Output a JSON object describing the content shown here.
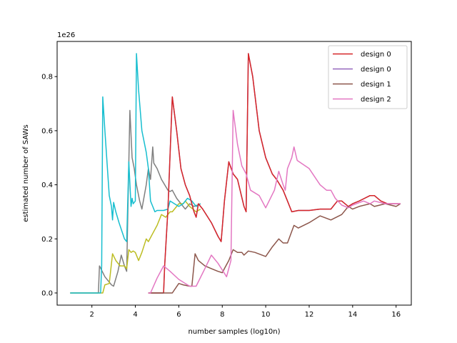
{
  "chart_data": {
    "type": "line",
    "title": "",
    "xlabel": "number samples (log10n)",
    "ylabel": "estimated number of SAWs",
    "y_offset_text": "1e26",
    "xlim": [
      0.4,
      16.7
    ],
    "ylim": [
      -0.045,
      0.93
    ],
    "x_ticks": [
      2,
      4,
      6,
      8,
      10,
      12,
      14,
      16
    ],
    "x_tick_labels": [
      "2",
      "4",
      "6",
      "8",
      "10",
      "12",
      "14",
      "16"
    ],
    "y_ticks": [
      0.0,
      0.2,
      0.4,
      0.6,
      0.8
    ],
    "y_tick_labels": [
      "0.0",
      "0.2",
      "0.4",
      "0.6",
      "0.8"
    ],
    "grid": false,
    "legend_position": "top-right",
    "legend": [
      {
        "label": "design 0",
        "color": "#d62728"
      },
      {
        "label": "design 0",
        "color": "#9467bd"
      },
      {
        "label": "design 1",
        "color": "#8c564b"
      },
      {
        "label": "design 2",
        "color": "#e377c2"
      }
    ],
    "series": [
      {
        "color": "#7f7f7f",
        "points": [
          [
            1.0,
            0.0
          ],
          [
            2.3,
            0.0
          ],
          [
            2.35,
            0.1
          ],
          [
            2.6,
            0.06
          ],
          [
            2.9,
            0.03
          ],
          [
            3.0,
            0.025
          ],
          [
            3.2,
            0.08
          ],
          [
            3.35,
            0.14
          ],
          [
            3.5,
            0.1
          ],
          [
            3.6,
            0.08
          ],
          [
            3.7,
            0.48
          ],
          [
            3.75,
            0.675
          ],
          [
            3.85,
            0.5
          ],
          [
            3.95,
            0.46
          ],
          [
            4.05,
            0.4
          ],
          [
            4.2,
            0.34
          ],
          [
            4.3,
            0.31
          ],
          [
            4.5,
            0.4
          ],
          [
            4.6,
            0.46
          ],
          [
            4.7,
            0.42
          ],
          [
            4.8,
            0.54
          ],
          [
            4.85,
            0.48
          ],
          [
            5.0,
            0.46
          ],
          [
            5.2,
            0.42
          ],
          [
            5.5,
            0.38
          ],
          [
            5.6,
            0.375
          ],
          [
            5.7,
            0.38
          ],
          [
            5.9,
            0.35
          ],
          [
            6.1,
            0.33
          ],
          [
            6.3,
            0.31
          ],
          [
            6.5,
            0.33
          ],
          [
            6.7,
            0.32
          ],
          [
            7.0,
            0.33
          ]
        ]
      },
      {
        "color": "#bcbd22",
        "points": [
          [
            1.0,
            0.0
          ],
          [
            2.5,
            0.0
          ],
          [
            2.6,
            0.03
          ],
          [
            2.8,
            0.035
          ],
          [
            2.95,
            0.145
          ],
          [
            3.1,
            0.12
          ],
          [
            3.3,
            0.1
          ],
          [
            3.5,
            0.1
          ],
          [
            3.6,
            0.09
          ],
          [
            3.7,
            0.16
          ],
          [
            3.8,
            0.15
          ],
          [
            3.9,
            0.155
          ],
          [
            4.0,
            0.15
          ],
          [
            4.15,
            0.12
          ],
          [
            4.3,
            0.15
          ],
          [
            4.5,
            0.2
          ],
          [
            4.6,
            0.19
          ],
          [
            4.8,
            0.22
          ],
          [
            5.0,
            0.25
          ],
          [
            5.2,
            0.29
          ],
          [
            5.4,
            0.28
          ],
          [
            5.6,
            0.3
          ],
          [
            5.7,
            0.3
          ],
          [
            5.9,
            0.32
          ],
          [
            6.0,
            0.33
          ],
          [
            6.2,
            0.33
          ],
          [
            6.3,
            0.34
          ],
          [
            6.5,
            0.32
          ],
          [
            6.8,
            0.3
          ],
          [
            7.0,
            0.31
          ]
        ]
      },
      {
        "color": "#17becf",
        "points": [
          [
            1.0,
            0.0
          ],
          [
            2.4,
            0.0
          ],
          [
            2.45,
            0.1
          ],
          [
            2.5,
            0.725
          ],
          [
            2.6,
            0.6
          ],
          [
            2.8,
            0.36
          ],
          [
            2.9,
            0.32
          ],
          [
            2.95,
            0.27
          ],
          [
            3.0,
            0.335
          ],
          [
            3.1,
            0.3
          ],
          [
            3.25,
            0.26
          ],
          [
            3.5,
            0.2
          ],
          [
            3.6,
            0.19
          ],
          [
            3.7,
            0.485
          ],
          [
            3.8,
            0.32
          ],
          [
            3.85,
            0.35
          ],
          [
            3.9,
            0.33
          ],
          [
            4.0,
            0.34
          ],
          [
            4.05,
            0.885
          ],
          [
            4.15,
            0.75
          ],
          [
            4.3,
            0.6
          ],
          [
            4.5,
            0.52
          ],
          [
            4.6,
            0.46
          ],
          [
            4.7,
            0.34
          ],
          [
            4.8,
            0.32
          ],
          [
            4.9,
            0.3
          ],
          [
            5.0,
            0.305
          ],
          [
            5.3,
            0.305
          ],
          [
            5.5,
            0.31
          ],
          [
            5.6,
            0.34
          ],
          [
            5.8,
            0.33
          ],
          [
            6.0,
            0.32
          ],
          [
            6.2,
            0.33
          ],
          [
            6.4,
            0.35
          ],
          [
            6.6,
            0.34
          ],
          [
            6.8,
            0.32
          ],
          [
            7.0,
            0.33
          ]
        ]
      },
      {
        "color": "#9467bd",
        "points": [
          [
            4.6,
            0.0
          ],
          [
            5.3,
            0.0
          ],
          [
            5.35,
            0.1
          ],
          [
            5.5,
            0.31
          ],
          [
            5.7,
            0.725
          ],
          [
            5.9,
            0.6
          ],
          [
            6.1,
            0.46
          ],
          [
            6.3,
            0.4
          ],
          [
            6.5,
            0.36
          ],
          [
            6.7,
            0.3
          ],
          [
            6.8,
            0.28
          ],
          [
            6.9,
            0.33
          ],
          [
            7.1,
            0.31
          ],
          [
            7.5,
            0.26
          ],
          [
            7.8,
            0.21
          ],
          [
            7.95,
            0.19
          ],
          [
            8.1,
            0.34
          ],
          [
            8.3,
            0.485
          ],
          [
            8.5,
            0.44
          ],
          [
            8.7,
            0.42
          ],
          [
            9.0,
            0.32
          ],
          [
            9.1,
            0.3
          ],
          [
            9.2,
            0.885
          ],
          [
            9.4,
            0.8
          ],
          [
            9.7,
            0.6
          ],
          [
            10.0,
            0.5
          ],
          [
            10.3,
            0.44
          ],
          [
            10.5,
            0.42
          ],
          [
            10.8,
            0.38
          ],
          [
            11.0,
            0.34
          ],
          [
            11.2,
            0.3
          ],
          [
            11.5,
            0.305
          ],
          [
            12.0,
            0.305
          ],
          [
            12.5,
            0.31
          ],
          [
            13.0,
            0.31
          ],
          [
            13.3,
            0.34
          ],
          [
            13.5,
            0.34
          ],
          [
            13.8,
            0.32
          ],
          [
            14.0,
            0.33
          ],
          [
            14.3,
            0.34
          ],
          [
            14.8,
            0.36
          ],
          [
            15.0,
            0.36
          ],
          [
            15.3,
            0.34
          ],
          [
            15.6,
            0.33
          ],
          [
            16.0,
            0.33
          ],
          [
            16.2,
            0.33
          ]
        ]
      },
      {
        "color": "#d62728",
        "points": [
          [
            4.6,
            0.0
          ],
          [
            5.3,
            0.0
          ],
          [
            5.35,
            0.1
          ],
          [
            5.5,
            0.31
          ],
          [
            5.7,
            0.725
          ],
          [
            5.9,
            0.6
          ],
          [
            6.1,
            0.46
          ],
          [
            6.3,
            0.4
          ],
          [
            6.5,
            0.36
          ],
          [
            6.7,
            0.3
          ],
          [
            6.8,
            0.28
          ],
          [
            6.9,
            0.33
          ],
          [
            7.1,
            0.31
          ],
          [
            7.5,
            0.26
          ],
          [
            7.8,
            0.21
          ],
          [
            7.95,
            0.19
          ],
          [
            8.1,
            0.34
          ],
          [
            8.3,
            0.485
          ],
          [
            8.5,
            0.44
          ],
          [
            8.7,
            0.42
          ],
          [
            9.0,
            0.32
          ],
          [
            9.1,
            0.3
          ],
          [
            9.2,
            0.885
          ],
          [
            9.4,
            0.8
          ],
          [
            9.7,
            0.6
          ],
          [
            10.0,
            0.5
          ],
          [
            10.3,
            0.44
          ],
          [
            10.5,
            0.42
          ],
          [
            10.8,
            0.38
          ],
          [
            11.0,
            0.34
          ],
          [
            11.2,
            0.3
          ],
          [
            11.5,
            0.305
          ],
          [
            12.0,
            0.305
          ],
          [
            12.5,
            0.31
          ],
          [
            13.0,
            0.31
          ],
          [
            13.3,
            0.34
          ],
          [
            13.5,
            0.34
          ],
          [
            13.8,
            0.32
          ],
          [
            14.0,
            0.33
          ],
          [
            14.3,
            0.34
          ],
          [
            14.8,
            0.36
          ],
          [
            15.0,
            0.36
          ],
          [
            15.3,
            0.34
          ],
          [
            15.6,
            0.33
          ],
          [
            16.0,
            0.33
          ],
          [
            16.2,
            0.33
          ]
        ]
      },
      {
        "color": "#8c564b",
        "points": [
          [
            4.6,
            0.0
          ],
          [
            5.7,
            0.0
          ],
          [
            6.0,
            0.035
          ],
          [
            6.2,
            0.03
          ],
          [
            6.5,
            0.025
          ],
          [
            6.6,
            0.025
          ],
          [
            6.75,
            0.145
          ],
          [
            6.9,
            0.12
          ],
          [
            7.2,
            0.1
          ],
          [
            7.5,
            0.09
          ],
          [
            7.8,
            0.08
          ],
          [
            8.0,
            0.075
          ],
          [
            8.1,
            0.09
          ],
          [
            8.3,
            0.12
          ],
          [
            8.5,
            0.16
          ],
          [
            8.7,
            0.15
          ],
          [
            8.9,
            0.15
          ],
          [
            9.0,
            0.14
          ],
          [
            9.2,
            0.155
          ],
          [
            9.5,
            0.15
          ],
          [
            10.0,
            0.135
          ],
          [
            10.3,
            0.17
          ],
          [
            10.6,
            0.2
          ],
          [
            10.8,
            0.185
          ],
          [
            11.0,
            0.185
          ],
          [
            11.3,
            0.25
          ],
          [
            11.5,
            0.24
          ],
          [
            12.0,
            0.26
          ],
          [
            12.5,
            0.285
          ],
          [
            13.0,
            0.27
          ],
          [
            13.5,
            0.29
          ],
          [
            13.8,
            0.32
          ],
          [
            14.0,
            0.31
          ],
          [
            14.3,
            0.32
          ],
          [
            14.8,
            0.33
          ],
          [
            15.0,
            0.32
          ],
          [
            15.5,
            0.33
          ],
          [
            16.0,
            0.32
          ],
          [
            16.2,
            0.33
          ]
        ]
      },
      {
        "color": "#e377c2",
        "points": [
          [
            4.6,
            0.0
          ],
          [
            4.7,
            0.0
          ],
          [
            5.0,
            0.055
          ],
          [
            5.3,
            0.1
          ],
          [
            5.6,
            0.08
          ],
          [
            6.0,
            0.05
          ],
          [
            6.3,
            0.035
          ],
          [
            6.5,
            0.025
          ],
          [
            6.8,
            0.025
          ],
          [
            7.2,
            0.09
          ],
          [
            7.5,
            0.14
          ],
          [
            7.8,
            0.11
          ],
          [
            8.0,
            0.085
          ],
          [
            8.2,
            0.06
          ],
          [
            8.4,
            0.12
          ],
          [
            8.5,
            0.675
          ],
          [
            8.7,
            0.55
          ],
          [
            8.9,
            0.47
          ],
          [
            9.1,
            0.44
          ],
          [
            9.3,
            0.38
          ],
          [
            9.7,
            0.36
          ],
          [
            10.0,
            0.315
          ],
          [
            10.4,
            0.38
          ],
          [
            10.6,
            0.45
          ],
          [
            10.8,
            0.4
          ],
          [
            10.9,
            0.38
          ],
          [
            11.0,
            0.46
          ],
          [
            11.2,
            0.5
          ],
          [
            11.3,
            0.54
          ],
          [
            11.45,
            0.49
          ],
          [
            12.0,
            0.46
          ],
          [
            12.5,
            0.4
          ],
          [
            12.8,
            0.38
          ],
          [
            13.0,
            0.38
          ],
          [
            13.2,
            0.35
          ],
          [
            13.5,
            0.325
          ],
          [
            13.8,
            0.315
          ],
          [
            14.0,
            0.325
          ],
          [
            14.5,
            0.34
          ],
          [
            14.8,
            0.33
          ],
          [
            15.0,
            0.34
          ],
          [
            15.5,
            0.33
          ],
          [
            16.0,
            0.33
          ],
          [
            16.2,
            0.33
          ]
        ]
      }
    ]
  }
}
